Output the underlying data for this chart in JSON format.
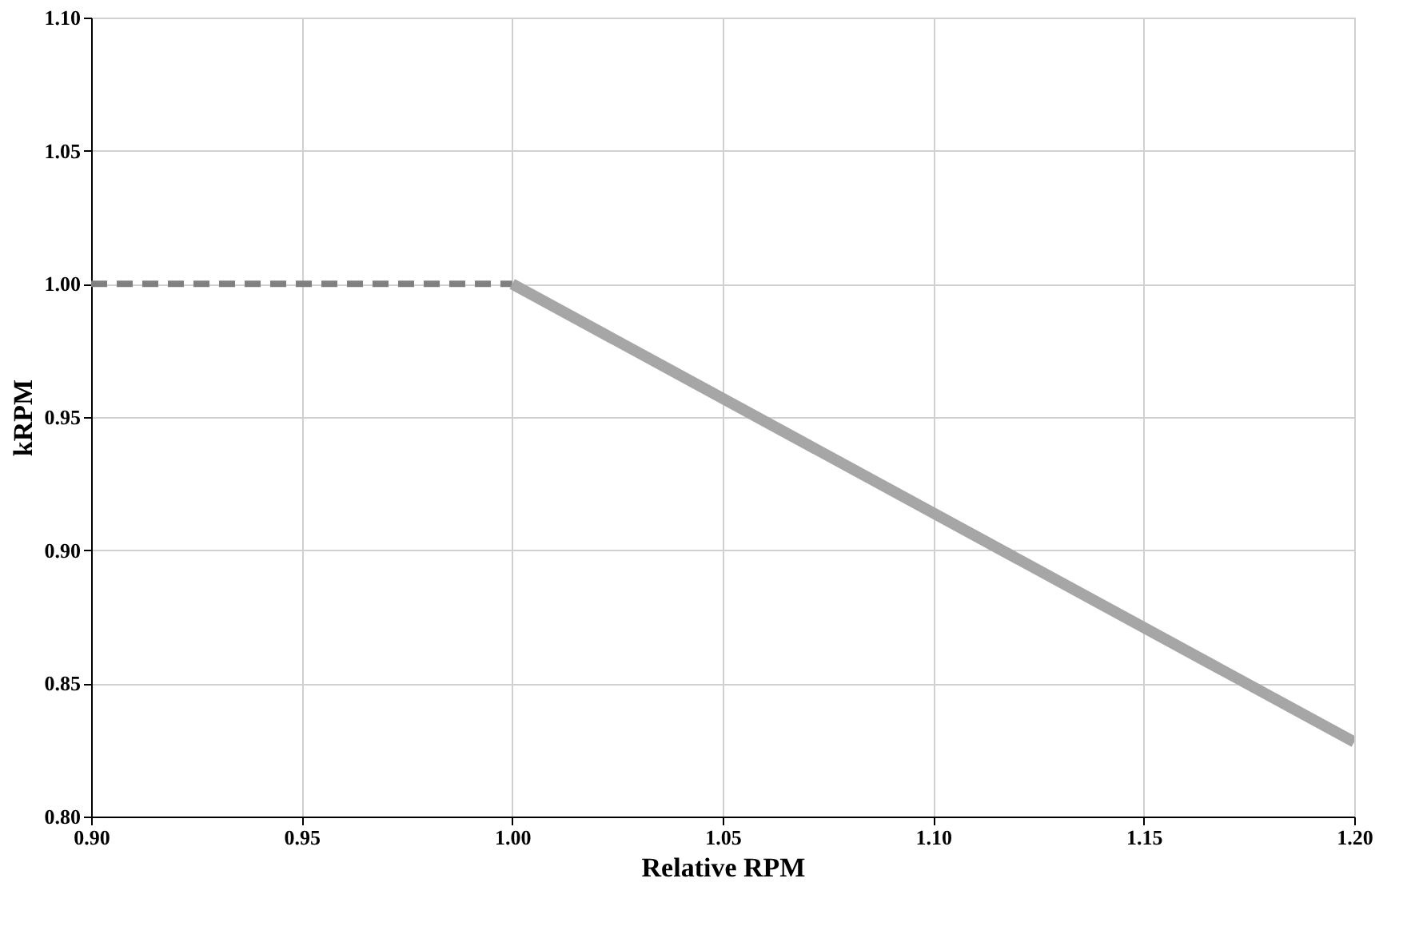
{
  "chart_data": {
    "type": "line",
    "xlabel": "Relative RPM",
    "ylabel": "kRPM",
    "xlim": [
      0.9,
      1.2
    ],
    "xticks": [
      {
        "value": 0.9,
        "label": "0.90"
      },
      {
        "value": 0.95,
        "label": "0.95"
      },
      {
        "value": 1.0,
        "label": "1.00"
      },
      {
        "value": 1.05,
        "label": "1.05"
      },
      {
        "value": 1.1,
        "label": "1.10"
      },
      {
        "value": 1.15,
        "label": "1.15"
      },
      {
        "value": 1.2,
        "label": "1.20"
      }
    ],
    "ylim": [
      0.8,
      1.1
    ],
    "yticks": [
      {
        "value": 0.8,
        "label": "0.80"
      },
      {
        "value": 0.85,
        "label": "0.85"
      },
      {
        "value": 0.9,
        "label": "0.90"
      },
      {
        "value": 0.95,
        "label": "0.95"
      },
      {
        "value": 1.0,
        "label": "1.00"
      },
      {
        "value": 1.05,
        "label": "1.05"
      },
      {
        "value": 1.1,
        "label": "1.10"
      }
    ],
    "grid": true,
    "marker": "none",
    "series": [
      {
        "x": [
          0.9,
          1.0
        ],
        "values": [
          1.0,
          1.0
        ],
        "color": "#808080",
        "line_style": "dashed"
      },
      {
        "x": [
          1.0,
          1.2
        ],
        "values": [
          1.0,
          0.828
        ],
        "color": "#a6a6a6",
        "line_style": "solid"
      }
    ]
  }
}
